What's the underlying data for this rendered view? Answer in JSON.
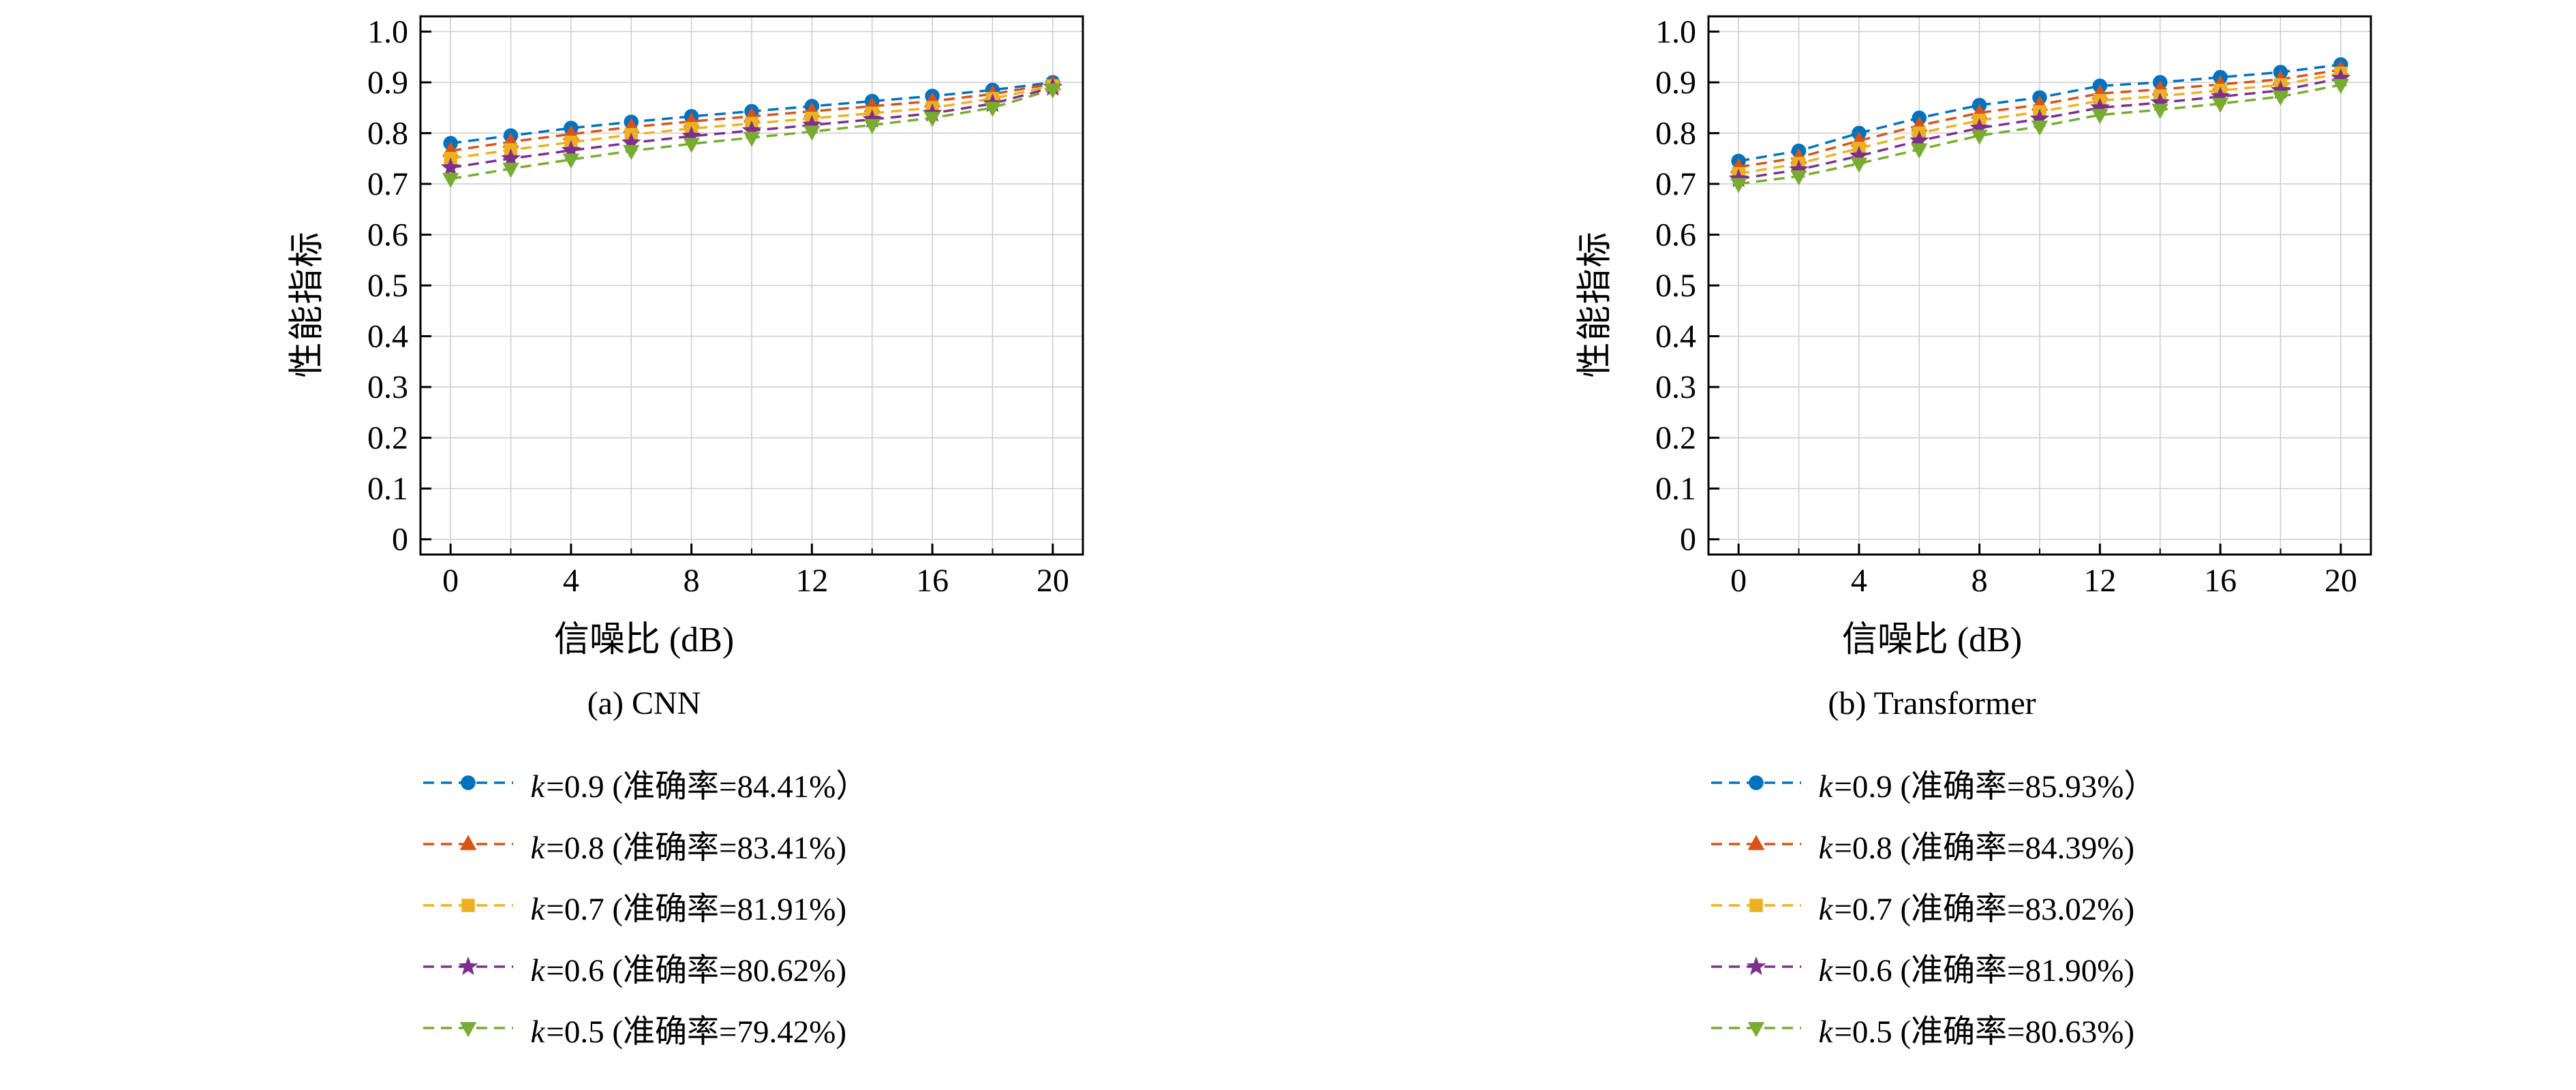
{
  "page": {
    "background": "#ffffff"
  },
  "chart_data": [
    {
      "type": "line",
      "title": "(a) CNN",
      "xlabel": "信噪比 (dB)",
      "ylabel": "性能指标",
      "x": [
        0,
        2,
        4,
        6,
        8,
        10,
        12,
        14,
        16,
        18,
        20
      ],
      "xlim": [
        -1,
        21
      ],
      "ylim": [
        -0.03,
        1.03
      ],
      "xticks": [
        0,
        4,
        8,
        12,
        16,
        20
      ],
      "xminorticks": [
        2,
        6,
        10,
        14,
        18
      ],
      "yticks": [
        0,
        0.1,
        0.2,
        0.3,
        0.4,
        0.5,
        0.6,
        0.7,
        0.8,
        0.9,
        1.0
      ],
      "grid": true,
      "grid_color": "#cfcfcf",
      "legend_position": "below",
      "series": [
        {
          "name": "k=0.9 (准确率=84.41%）",
          "color": "#0072BD",
          "marker": "circle",
          "values": [
            0.78,
            0.795,
            0.81,
            0.822,
            0.833,
            0.843,
            0.853,
            0.863,
            0.873,
            0.885,
            0.9
          ]
        },
        {
          "name": "k=0.8 (准确率=83.41%)",
          "color": "#D95319",
          "marker": "triangle-up",
          "values": [
            0.765,
            0.783,
            0.798,
            0.812,
            0.823,
            0.833,
            0.843,
            0.853,
            0.863,
            0.877,
            0.897
          ]
        },
        {
          "name": "k=0.7 (准确率=81.91%)",
          "color": "#EDB120",
          "marker": "square",
          "values": [
            0.75,
            0.767,
            0.782,
            0.797,
            0.809,
            0.819,
            0.829,
            0.839,
            0.85,
            0.868,
            0.893
          ]
        },
        {
          "name": "k=0.6 (准确率=80.62%)",
          "color": "#7E2F8E",
          "marker": "star",
          "values": [
            0.732,
            0.75,
            0.766,
            0.781,
            0.794,
            0.805,
            0.816,
            0.827,
            0.839,
            0.858,
            0.89
          ]
        },
        {
          "name": "k=0.5 (准确率=79.42%)",
          "color": "#77AC30",
          "marker": "triangle-down",
          "values": [
            0.71,
            0.73,
            0.748,
            0.765,
            0.779,
            0.791,
            0.803,
            0.816,
            0.83,
            0.85,
            0.886
          ]
        }
      ]
    },
    {
      "type": "line",
      "title": "(b) Transformer",
      "xlabel": "信噪比 (dB)",
      "ylabel": "性能指标",
      "x": [
        0,
        2,
        4,
        6,
        8,
        10,
        12,
        14,
        16,
        18,
        20
      ],
      "xlim": [
        -1,
        21
      ],
      "ylim": [
        -0.03,
        1.03
      ],
      "xticks": [
        0,
        4,
        8,
        12,
        16,
        20
      ],
      "xminorticks": [
        2,
        6,
        10,
        14,
        18
      ],
      "yticks": [
        0,
        0.1,
        0.2,
        0.3,
        0.4,
        0.5,
        0.6,
        0.7,
        0.8,
        0.9,
        1.0
      ],
      "grid": true,
      "grid_color": "#cfcfcf",
      "legend_position": "below",
      "series": [
        {
          "name": "k=0.9 (准确率=85.93%）",
          "color": "#0072BD",
          "marker": "circle",
          "values": [
            0.745,
            0.765,
            0.8,
            0.83,
            0.855,
            0.87,
            0.893,
            0.9,
            0.91,
            0.92,
            0.935
          ]
        },
        {
          "name": "k=0.8 (准确率=84.39%)",
          "color": "#D95319",
          "marker": "triangle-up",
          "values": [
            0.733,
            0.752,
            0.785,
            0.815,
            0.84,
            0.856,
            0.878,
            0.886,
            0.896,
            0.906,
            0.925
          ]
        },
        {
          "name": "k=0.7 (准确率=83.02%)",
          "color": "#EDB120",
          "marker": "square",
          "values": [
            0.72,
            0.74,
            0.77,
            0.8,
            0.825,
            0.842,
            0.864,
            0.873,
            0.884,
            0.895,
            0.918
          ]
        },
        {
          "name": "k=0.6 (准确率=81.90%)",
          "color": "#7E2F8E",
          "marker": "star",
          "values": [
            0.71,
            0.728,
            0.755,
            0.785,
            0.81,
            0.828,
            0.85,
            0.86,
            0.872,
            0.884,
            0.908
          ]
        },
        {
          "name": "k=0.5 (准确率=80.63%)",
          "color": "#77AC30",
          "marker": "triangle-down",
          "values": [
            0.7,
            0.715,
            0.74,
            0.768,
            0.795,
            0.813,
            0.836,
            0.846,
            0.858,
            0.872,
            0.895
          ]
        }
      ]
    }
  ]
}
